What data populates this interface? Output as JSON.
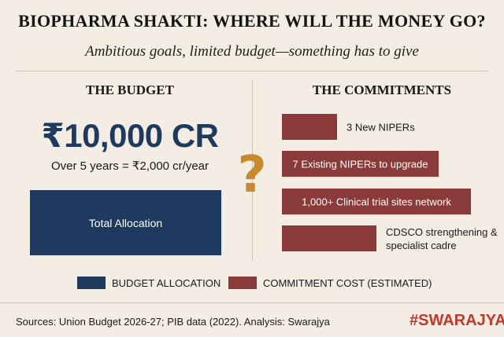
{
  "header": {
    "title": "BIOPHARMA SHAKTI: WHERE WILL THE MONEY GO?",
    "subtitle": "Ambitious goals, limited budget—something has to give"
  },
  "budget": {
    "heading": "THE BUDGET",
    "amount": "₹10,000 CR",
    "per_year": "Over 5 years = ₹2,000 cr/year",
    "bar_label": "Total Allocation"
  },
  "question_mark": "?",
  "commitments": {
    "heading": "THE COMMITMENTS"
  },
  "chart_data": {
    "type": "bar",
    "orientation": "horizontal",
    "title": "THE COMMITMENTS",
    "note": "Commitment cost (estimated); bar lengths are relative visual estimates, no axis or values shown",
    "series": [
      {
        "name": "COMMITMENT COST (ESTIMATED)",
        "color": "#8b3a3a",
        "items": [
          {
            "label": "3 New NIPERs",
            "relative_value": 0.29,
            "label_position": "right"
          },
          {
            "label": "7 Existing NIPERs to upgrade",
            "relative_value": 0.83,
            "label_position": "inside"
          },
          {
            "label": "1,000+ Clinical trial sites network",
            "relative_value": 1.0,
            "label_position": "inside"
          },
          {
            "label": "CDSCO strengthening & specialist cadre",
            "relative_value": 0.5,
            "label_position": "right"
          }
        ]
      },
      {
        "name": "BUDGET ALLOCATION",
        "color": "#1f3a5f",
        "items": [
          {
            "label": "Total Allocation"
          }
        ]
      }
    ]
  },
  "legend": {
    "budget_label": "BUDGET ALLOCATION",
    "commit_label": "COMMITMENT COST (ESTIMATED)"
  },
  "footer": {
    "sources": "Sources: Union Budget 2026-27; PIB data (2022). Analysis: Swarajya",
    "brand": "#SWARAJYA"
  }
}
